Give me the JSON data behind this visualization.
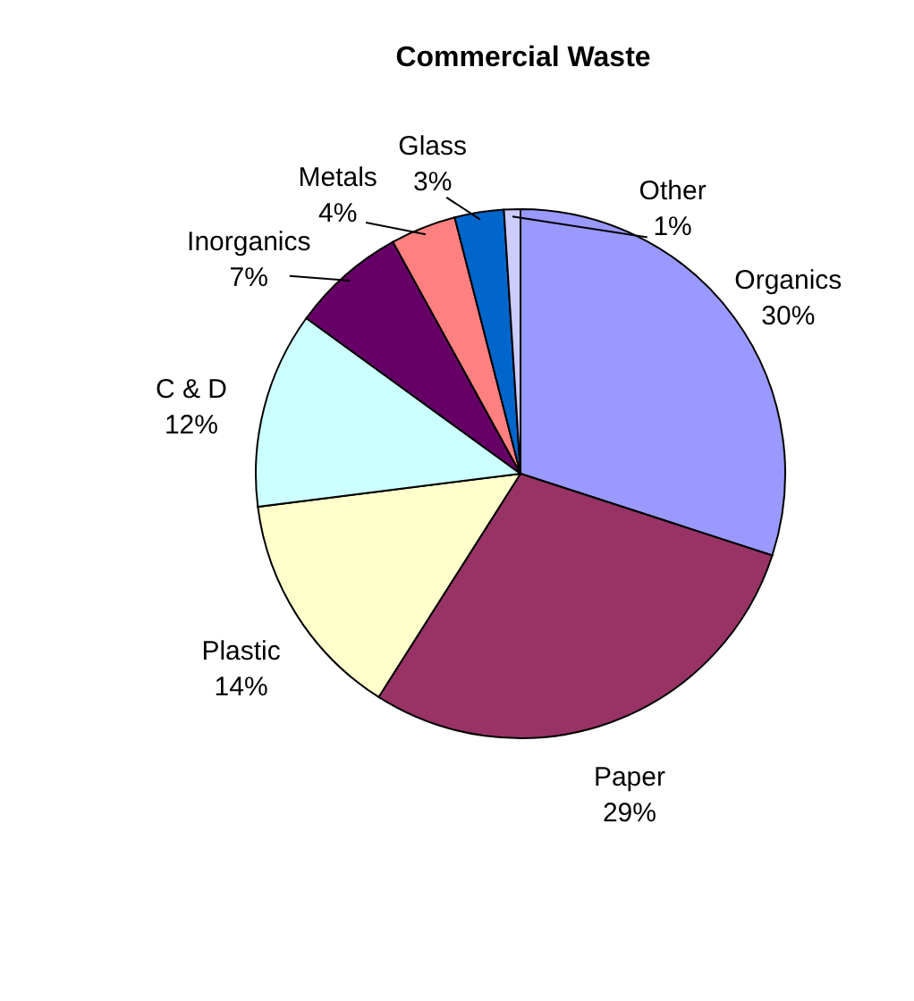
{
  "chart_data": {
    "type": "pie",
    "title": "Commercial Waste",
    "categories": [
      "Organics",
      "Paper",
      "Plastic",
      "C & D",
      "Inorganics",
      "Metals",
      "Glass",
      "Other"
    ],
    "values": [
      30,
      29,
      14,
      12,
      7,
      4,
      3,
      1
    ],
    "value_labels": [
      "30%",
      "29%",
      "14%",
      "12%",
      "7%",
      "4%",
      "3%",
      "1%"
    ],
    "colors": [
      "#9999ff",
      "#993366",
      "#ffffcc",
      "#ccffff",
      "#660066",
      "#ff8080",
      "#0066cc",
      "#ccccff"
    ],
    "legend": false
  }
}
